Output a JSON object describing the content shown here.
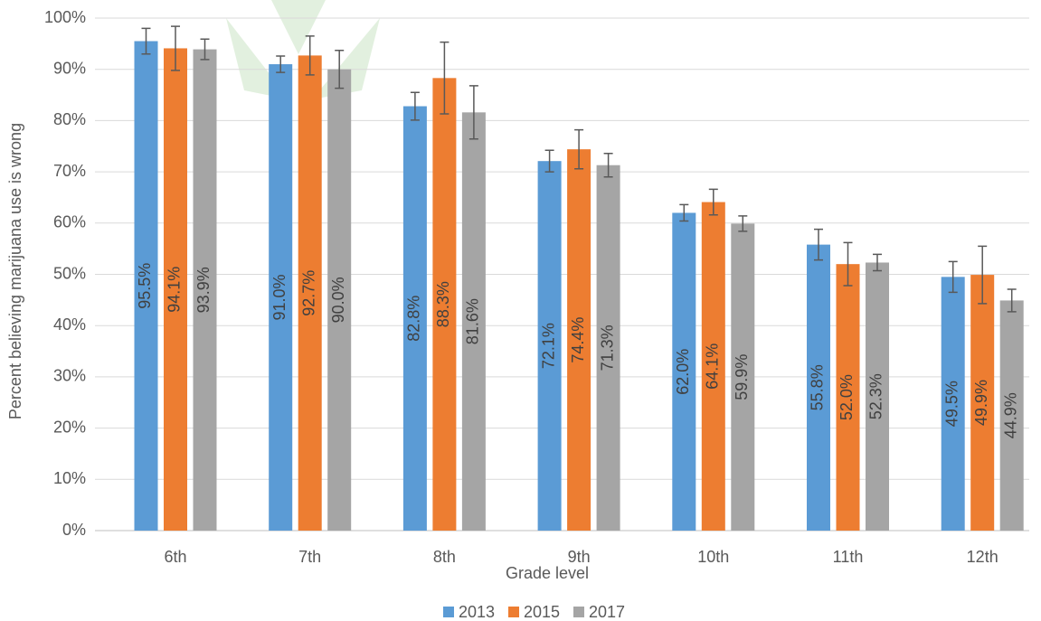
{
  "chart_data": {
    "type": "bar",
    "y_label": "Percent believing marijuana use is wrong",
    "x_label": "Grade level",
    "categories": [
      "6th",
      "7th",
      "8th",
      "9th",
      "10th",
      "11th",
      "12th"
    ],
    "series": [
      {
        "name": "2013",
        "color": "#5b9bd5",
        "values": [
          95.5,
          91.0,
          82.8,
          72.1,
          62.0,
          55.8,
          49.5
        ],
        "value_labels": [
          "95.5%",
          "91.0%",
          "82.8%",
          "72.1%",
          "62.0%",
          "55.8%",
          "49.5%"
        ],
        "errors": [
          2.5,
          1.6,
          2.7,
          2.1,
          1.6,
          3.0,
          3.0
        ]
      },
      {
        "name": "2015",
        "color": "#ed7d31",
        "values": [
          94.1,
          92.7,
          88.3,
          74.4,
          64.1,
          52.0,
          49.9
        ],
        "value_labels": [
          "94.1%",
          "92.7%",
          "88.3%",
          "74.4%",
          "64.1%",
          "52.0%",
          "49.9%"
        ],
        "errors": [
          4.3,
          3.8,
          7.0,
          3.8,
          2.5,
          4.2,
          5.6
        ]
      },
      {
        "name": "2017",
        "color": "#a5a5a5",
        "values": [
          93.9,
          90.0,
          81.6,
          71.3,
          59.9,
          52.3,
          44.9
        ],
        "value_labels": [
          "93.9%",
          "90.0%",
          "81.6%",
          "71.3%",
          "59.9%",
          "52.3%",
          "44.9%"
        ],
        "errors": [
          2.0,
          3.7,
          5.2,
          2.3,
          1.5,
          1.6,
          2.2
        ]
      }
    ],
    "ylim": [
      0,
      100
    ],
    "yticks": [
      {
        "value": 0,
        "label": "0%"
      },
      {
        "value": 10,
        "label": "10%"
      },
      {
        "value": 20,
        "label": "20%"
      },
      {
        "value": 30,
        "label": "30%"
      },
      {
        "value": 40,
        "label": "40%"
      },
      {
        "value": 50,
        "label": "50%"
      },
      {
        "value": 60,
        "label": "60%"
      },
      {
        "value": 70,
        "label": "70%"
      },
      {
        "value": 80,
        "label": "80%"
      },
      {
        "value": 90,
        "label": "90%"
      },
      {
        "value": 100,
        "label": "100%"
      }
    ],
    "grid": true
  }
}
